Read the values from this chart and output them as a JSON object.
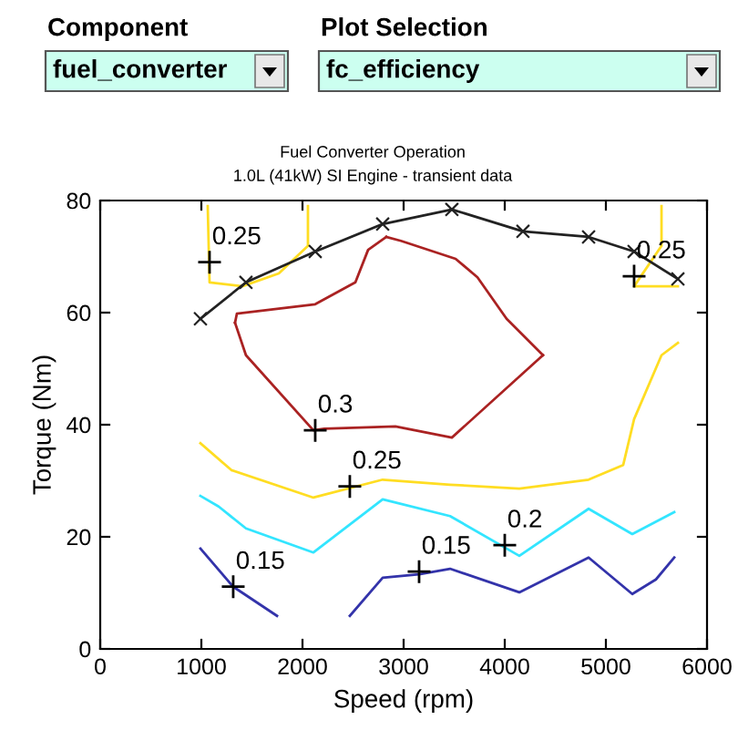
{
  "chart_data": {
    "type": "line",
    "title": "Fuel Converter Operation",
    "subtitle": "1.0L (41kW) SI Engine - transient data",
    "xlabel": "Speed (rpm)",
    "ylabel": "Torque (Nm)",
    "xlim": [
      0,
      6000
    ],
    "ylim": [
      0,
      80
    ],
    "xticks": [
      0,
      1000,
      2000,
      3000,
      4000,
      5000,
      6000
    ],
    "yticks": [
      0,
      20,
      40,
      60,
      80
    ],
    "grid": false,
    "legend": false,
    "series": [
      {
        "color": "#3333aa",
        "x": [
          991,
          1315,
          1748
        ],
        "values": [
          17.9,
          11.1,
          5.9
        ]
      },
      {
        "color": "#3333aa",
        "x": [
          2468,
          2793,
          3153,
          3459,
          4144,
          4829,
          5261,
          5495,
          5676
        ],
        "values": [
          5.9,
          12.7,
          13.3,
          14.3,
          10.1,
          16.3,
          9.8,
          12.4,
          16.3
        ]
      },
      {
        "color": "#33e5ff",
        "x": [
          991,
          1171,
          1441,
          2108,
          2793,
          3459,
          4144,
          4829,
          5261,
          5676
        ],
        "values": [
          27.3,
          25.4,
          21.5,
          17.2,
          26.7,
          23.7,
          16.6,
          25.0,
          20.5,
          24.4
        ]
      },
      {
        "color": "#ffdd22",
        "x": [
          991,
          1297,
          2108,
          2793,
          3459,
          4144,
          4829,
          5171,
          5279,
          5550,
          5712
        ],
        "values": [
          36.7,
          31.9,
          27.0,
          30.2,
          29.3,
          28.6,
          30.2,
          32.8,
          41.0,
          52.4,
          54.6
        ]
      },
      {
        "color": "#ffdd22",
        "x": [
          1063,
          1081,
          1405,
          1766,
          2054,
          2054
        ],
        "values": [
          79,
          65.4,
          64.7,
          67,
          71.9,
          79
        ]
      },
      {
        "color": "#ffdd22",
        "x": [
          5550,
          5550,
          5279,
          5712
        ],
        "values": [
          79,
          71.9,
          64.7,
          64.7
        ]
      },
      {
        "color": "#aa2222",
        "x": [
          2829,
          2649,
          2523,
          2126,
          1351,
          1333
        ],
        "values": [
          73.5,
          71.2,
          65.4,
          61.5,
          59.8,
          58.2
        ]
      },
      {
        "color": "#aa2222",
        "x": [
          1333,
          1441,
          2108,
          2216,
          2919,
          3477,
          4378
        ],
        "values": [
          58.2,
          52.4,
          39.0,
          39.3,
          39.7,
          37.7,
          52.4
        ]
      },
      {
        "color": "#aa2222",
        "x": [
          4378,
          4018,
          3730,
          3514,
          2973,
          2829
        ],
        "values": [
          52.4,
          58.9,
          66.3,
          69.6,
          72.8,
          73.5
        ]
      },
      {
        "color": "#222222",
        "marker": "cross",
        "x": [
          991,
          1441,
          2126,
          2793,
          3477,
          4180,
          4829,
          5279,
          5712
        ],
        "values": [
          58.9,
          65.4,
          70.9,
          75.8,
          78.4,
          74.5,
          73.5,
          70.9,
          66.0
        ]
      }
    ],
    "annotations": [
      "Component",
      "fuel_converter",
      "Plot Selection",
      "fc_efficiency",
      {
        "text": "0.25",
        "x": 1081,
        "y": 69
      },
      {
        "text": "0.3",
        "x": 2126,
        "y": 39
      },
      {
        "text": "0.25",
        "x": 2468,
        "y": 29
      },
      {
        "text": "0.15",
        "x": 1315,
        "y": 11.1
      },
      {
        "text": "0.15",
        "x": 3153,
        "y": 13.8
      },
      {
        "text": "0.2",
        "x": 4000,
        "y": 18.5
      },
      {
        "text": "0.25",
        "x": 5279,
        "y": 66.5
      }
    ]
  }
}
